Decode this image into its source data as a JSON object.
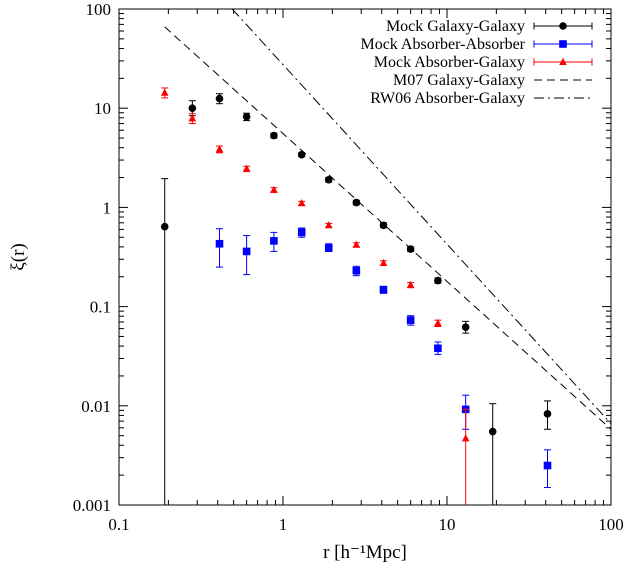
{
  "chart_data": {
    "type": "scatter",
    "title": "",
    "xlabel": "r [h⁻¹Mpc]",
    "ylabel": "ξ(r)",
    "xscale": "log",
    "yscale": "log",
    "xlim": [
      0.1,
      100
    ],
    "ylim": [
      0.001,
      100
    ],
    "xticks": [
      {
        "value": 0.1,
        "label": "0.1"
      },
      {
        "value": 1,
        "label": "1"
      },
      {
        "value": 10,
        "label": "10"
      },
      {
        "value": 100,
        "label": "100"
      }
    ],
    "yticks": [
      {
        "value": 0.001,
        "label": "0.001"
      },
      {
        "value": 0.01,
        "label": "0.01"
      },
      {
        "value": 0.1,
        "label": "0.1"
      },
      {
        "value": 1,
        "label": "1"
      },
      {
        "value": 10,
        "label": "10"
      },
      {
        "value": 100,
        "label": "100"
      }
    ],
    "grid": false,
    "legend_position": "top-right",
    "series": [
      {
        "name": "Mock Galaxy-Galaxy",
        "marker": "circle",
        "color": "#000000",
        "points": [
          {
            "x": 0.19,
            "y": 0.64,
            "lo": 0.001,
            "hi": 1.95
          },
          {
            "x": 0.28,
            "y": 10.0,
            "lo": 8.4,
            "hi": 11.9
          },
          {
            "x": 0.41,
            "y": 12.5,
            "lo": 11.1,
            "hi": 14.0
          },
          {
            "x": 0.6,
            "y": 8.2,
            "lo": 7.5,
            "hi": 8.9
          },
          {
            "x": 0.88,
            "y": 5.3,
            "lo": 5.0,
            "hi": 5.6
          },
          {
            "x": 1.3,
            "y": 3.4,
            "lo": 3.25,
            "hi": 3.55
          },
          {
            "x": 1.9,
            "y": 1.9,
            "lo": 1.8,
            "hi": 2.0
          },
          {
            "x": 2.8,
            "y": 1.12,
            "lo": 1.06,
            "hi": 1.18
          },
          {
            "x": 4.1,
            "y": 0.66,
            "lo": 0.625,
            "hi": 0.7
          },
          {
            "x": 6.0,
            "y": 0.38,
            "lo": 0.36,
            "hi": 0.4
          },
          {
            "x": 8.8,
            "y": 0.183,
            "lo": 0.172,
            "hi": 0.194
          },
          {
            "x": 13.0,
            "y": 0.062,
            "lo": 0.054,
            "hi": 0.071
          },
          {
            "x": 19.0,
            "y": 0.0055,
            "lo": 0.001,
            "hi": 0.0105
          },
          {
            "x": 41.0,
            "y": 0.0083,
            "lo": 0.0058,
            "hi": 0.0112
          }
        ]
      },
      {
        "name": "Mock Absorber-Absorber",
        "marker": "square",
        "color": "#0000ff",
        "points": [
          {
            "x": 0.41,
            "y": 0.43,
            "lo": 0.25,
            "hi": 0.61
          },
          {
            "x": 0.6,
            "y": 0.36,
            "lo": 0.21,
            "hi": 0.52
          },
          {
            "x": 0.88,
            "y": 0.46,
            "lo": 0.36,
            "hi": 0.56
          },
          {
            "x": 1.3,
            "y": 0.56,
            "lo": 0.5,
            "hi": 0.62
          },
          {
            "x": 1.9,
            "y": 0.39,
            "lo": 0.36,
            "hi": 0.43
          },
          {
            "x": 2.8,
            "y": 0.23,
            "lo": 0.205,
            "hi": 0.255
          },
          {
            "x": 4.1,
            "y": 0.148,
            "lo": 0.136,
            "hi": 0.16
          },
          {
            "x": 6.0,
            "y": 0.073,
            "lo": 0.065,
            "hi": 0.081
          },
          {
            "x": 8.8,
            "y": 0.038,
            "lo": 0.033,
            "hi": 0.044
          },
          {
            "x": 13.0,
            "y": 0.0092,
            "lo": 0.0058,
            "hi": 0.0128
          },
          {
            "x": 41.0,
            "y": 0.0025,
            "lo": 0.0015,
            "hi": 0.0036
          }
        ]
      },
      {
        "name": "Mock Absorber-Galaxy",
        "marker": "triangle",
        "color": "#ff0000",
        "points": [
          {
            "x": 0.19,
            "y": 14.3,
            "lo": 12.7,
            "hi": 16.0
          },
          {
            "x": 0.28,
            "y": 7.9,
            "lo": 7.0,
            "hi": 8.8
          },
          {
            "x": 0.41,
            "y": 3.85,
            "lo": 3.55,
            "hi": 4.15
          },
          {
            "x": 0.6,
            "y": 2.45,
            "lo": 2.3,
            "hi": 2.6
          },
          {
            "x": 0.88,
            "y": 1.5,
            "lo": 1.42,
            "hi": 1.58
          },
          {
            "x": 1.3,
            "y": 1.1,
            "lo": 1.05,
            "hi": 1.15
          },
          {
            "x": 1.9,
            "y": 0.66,
            "lo": 0.63,
            "hi": 0.69
          },
          {
            "x": 2.8,
            "y": 0.42,
            "lo": 0.4,
            "hi": 0.44
          },
          {
            "x": 4.1,
            "y": 0.275,
            "lo": 0.26,
            "hi": 0.29
          },
          {
            "x": 6.0,
            "y": 0.165,
            "lo": 0.155,
            "hi": 0.175
          },
          {
            "x": 8.8,
            "y": 0.068,
            "lo": 0.063,
            "hi": 0.073
          },
          {
            "x": 13.0,
            "y": 0.0047,
            "lo": 0.001,
            "hi": 0.0092
          }
        ]
      },
      {
        "name": "M07 Galaxy-Galaxy",
        "style": "dashed",
        "color": "#000000",
        "line": [
          [
            0.19,
            66
          ],
          [
            100,
            0.0058
          ]
        ]
      },
      {
        "name": "RW06 Absorber-Galaxy",
        "style": "dash-dot",
        "color": "#000000",
        "line": [
          [
            0.49,
            100
          ],
          [
            100,
            0.0066
          ]
        ]
      }
    ]
  }
}
